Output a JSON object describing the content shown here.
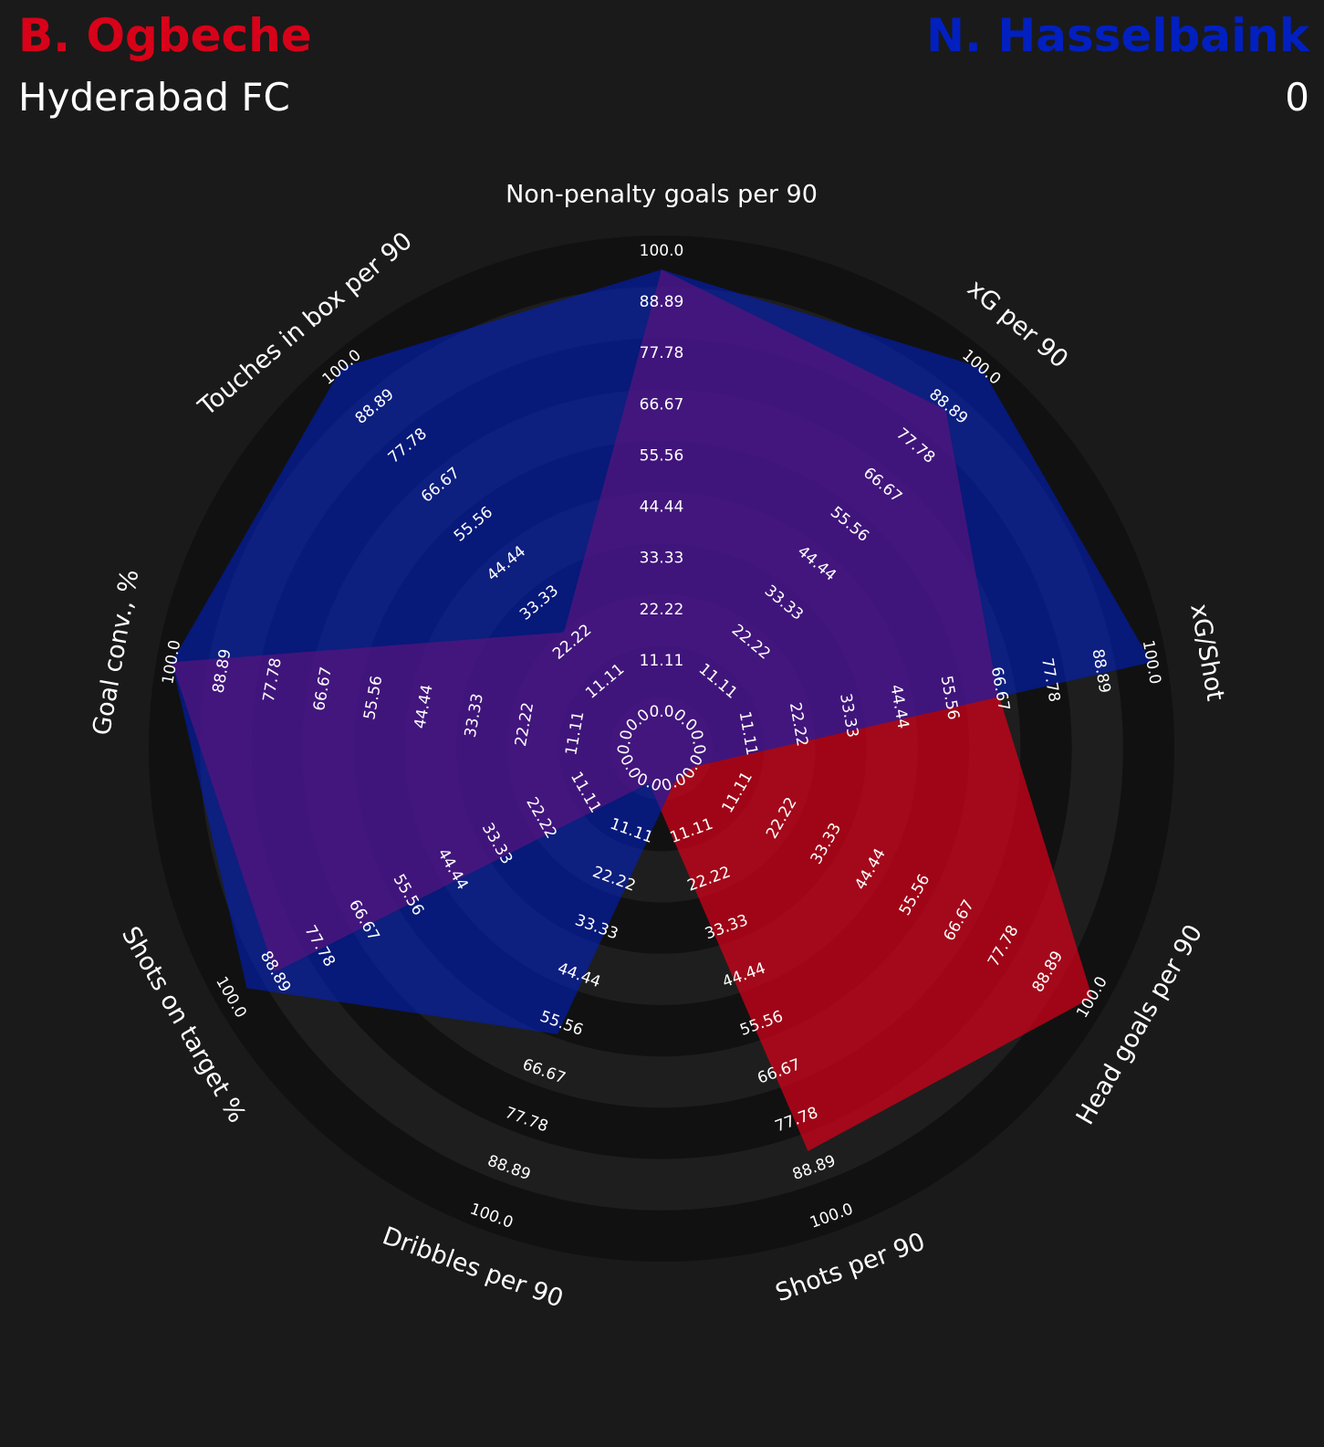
{
  "header": {
    "player1_name": "B. Ogbeche",
    "player1_team": "Hyderabad FC",
    "player2_name": "N. Hasselbaink",
    "player2_team": "0"
  },
  "colors": {
    "background": "#1a1a1a",
    "ring_dark": "#111111",
    "ring_light": "#1e1e1e",
    "player1": "#d70219",
    "player2": "#0220c0",
    "text": "#ffffff"
  },
  "chart_data": {
    "type": "radar",
    "params": [
      "Non-penalty goals per 90",
      "xG per 90",
      "xG/Shot",
      "Head goals per 90",
      "Shots per 90",
      "Dribbles per 90",
      "Shots on target %",
      "Goal conv., %",
      "Touches in box per 90"
    ],
    "range_ticks": [
      "0.0",
      "11.11",
      "22.22",
      "33.33",
      "44.44",
      "55.56",
      "66.67",
      "77.78",
      "88.89",
      "100.0"
    ],
    "range": [
      0,
      100
    ],
    "series": [
      {
        "name": "B. Ogbeche",
        "values": [
          96,
          88,
          66,
          100,
          85,
          0,
          89,
          100,
          25
        ]
      },
      {
        "name": "N. Hasselbaink",
        "values": [
          96,
          100,
          100,
          0,
          0,
          58,
          96,
          100,
          100
        ]
      }
    ]
  }
}
